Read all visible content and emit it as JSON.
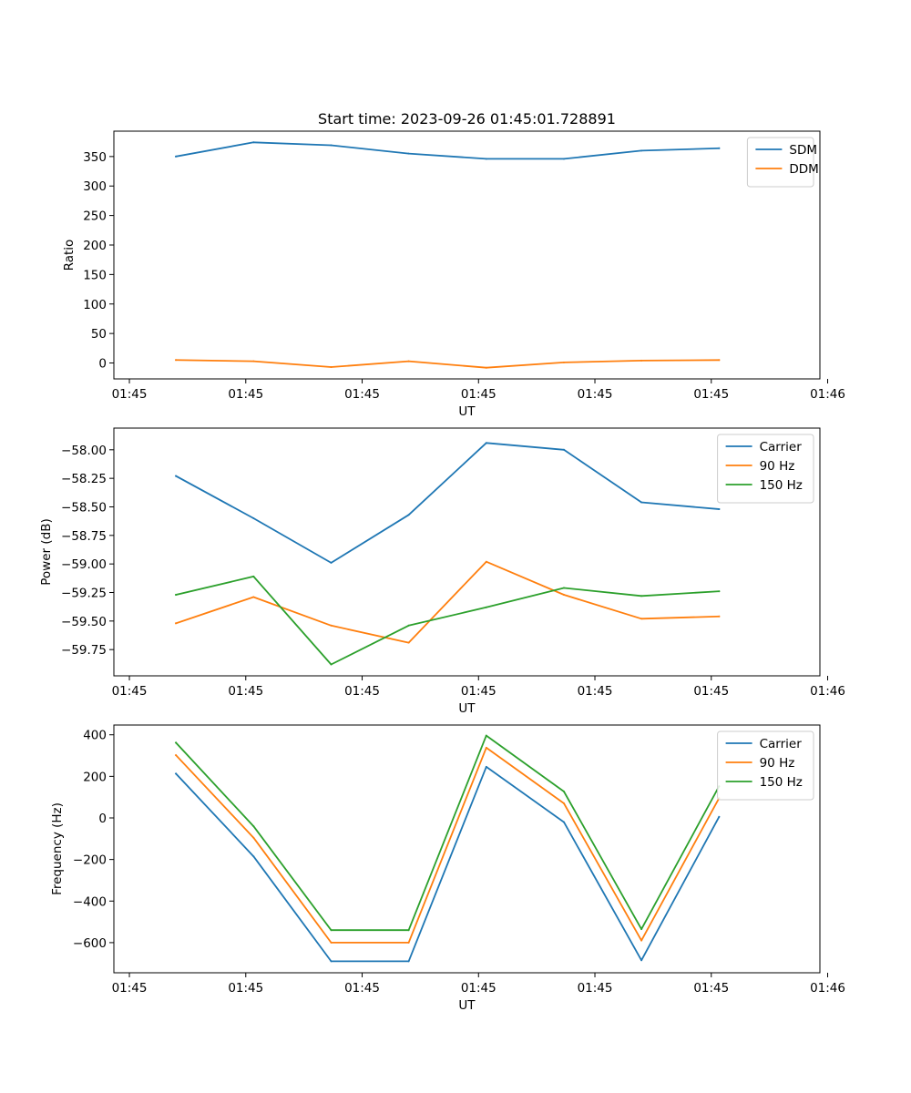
{
  "chart_data": [
    {
      "type": "line",
      "title": "Start time: 2023-09-26 01:45:01.728891",
      "xlabel": "UT",
      "ylabel": "Ratio",
      "x": [
        1,
        2,
        3,
        4,
        5,
        6,
        7,
        8
      ],
      "xlim": [
        0.2,
        9.3
      ],
      "xticks": [
        0.4,
        1.9,
        3.4,
        4.9,
        6.4,
        7.9,
        9.4
      ],
      "xtick_labels": [
        "01:45",
        "01:45",
        "01:45",
        "01:45",
        "01:45",
        "01:45",
        "01:46"
      ],
      "ylim": [
        -27,
        393
      ],
      "yticks": [
        0,
        50,
        100,
        150,
        200,
        250,
        300,
        350
      ],
      "ytick_labels": [
        "0",
        "50",
        "100",
        "150",
        "200",
        "250",
        "300",
        "350"
      ],
      "legend_position": "top-right",
      "series": [
        {
          "name": "SDM",
          "color": "#1f77b4",
          "values": [
            350,
            374,
            369,
            355,
            346,
            346,
            360,
            364
          ]
        },
        {
          "name": "DDM",
          "color": "#ff7f0e",
          "values": [
            5,
            3,
            -7,
            3,
            -8,
            1,
            4,
            5
          ]
        }
      ]
    },
    {
      "type": "line",
      "title": "",
      "xlabel": "UT",
      "ylabel": "Power (dB)",
      "x": [
        1,
        2,
        3,
        4,
        5,
        6,
        7,
        8
      ],
      "xlim": [
        0.2,
        9.3
      ],
      "xticks": [
        0.4,
        1.9,
        3.4,
        4.9,
        6.4,
        7.9,
        9.4
      ],
      "xtick_labels": [
        "01:45",
        "01:45",
        "01:45",
        "01:45",
        "01:45",
        "01:45",
        "01:46"
      ],
      "ylim": [
        -59.98,
        -57.81
      ],
      "yticks": [
        -59.75,
        -59.5,
        -59.25,
        -59.0,
        -58.75,
        -58.5,
        -58.25,
        -58.0
      ],
      "ytick_labels": [
        "−59.75",
        "−59.50",
        "−59.25",
        "−59.00",
        "−58.75",
        "−58.50",
        "−58.25",
        "−58.00"
      ],
      "legend_position": "top-right",
      "series": [
        {
          "name": "Carrier",
          "color": "#1f77b4",
          "values": [
            -58.23,
            -58.6,
            -58.99,
            -58.57,
            -57.94,
            -58.0,
            -58.46,
            -58.52
          ]
        },
        {
          "name": "90 Hz",
          "color": "#ff7f0e",
          "values": [
            -59.52,
            -59.29,
            -59.54,
            -59.69,
            -58.98,
            -59.27,
            -59.48,
            -59.46
          ]
        },
        {
          "name": "150 Hz",
          "color": "#2ca02c",
          "values": [
            -59.27,
            -59.11,
            -59.88,
            -59.54,
            -59.38,
            -59.21,
            -59.28,
            -59.24
          ]
        }
      ]
    },
    {
      "type": "line",
      "title": "",
      "xlabel": "UT",
      "ylabel": "Frequency (Hz)",
      "x": [
        1,
        2,
        3,
        4,
        5,
        6,
        7,
        8
      ],
      "xlim": [
        0.2,
        9.3
      ],
      "xticks": [
        0.4,
        1.9,
        3.4,
        4.9,
        6.4,
        7.9,
        9.4
      ],
      "xtick_labels": [
        "01:45",
        "01:45",
        "01:45",
        "01:45",
        "01:45",
        "01:45",
        "01:46"
      ],
      "ylim": [
        -745,
        447
      ],
      "yticks": [
        -600,
        -400,
        -200,
        0,
        200,
        400
      ],
      "ytick_labels": [
        "−600",
        "−400",
        "−200",
        "0",
        "200",
        "400"
      ],
      "legend_position": "top-right",
      "series": [
        {
          "name": "Carrier",
          "color": "#1f77b4",
          "values": [
            213,
            -185,
            -690,
            -690,
            246,
            -20,
            -685,
            5
          ]
        },
        {
          "name": "90 Hz",
          "color": "#ff7f0e",
          "values": [
            302,
            -95,
            -600,
            -600,
            338,
            70,
            -590,
            95
          ]
        },
        {
          "name": "150 Hz",
          "color": "#2ca02c",
          "values": [
            362,
            -40,
            -540,
            -540,
            396,
            127,
            -535,
            152
          ]
        }
      ]
    }
  ]
}
